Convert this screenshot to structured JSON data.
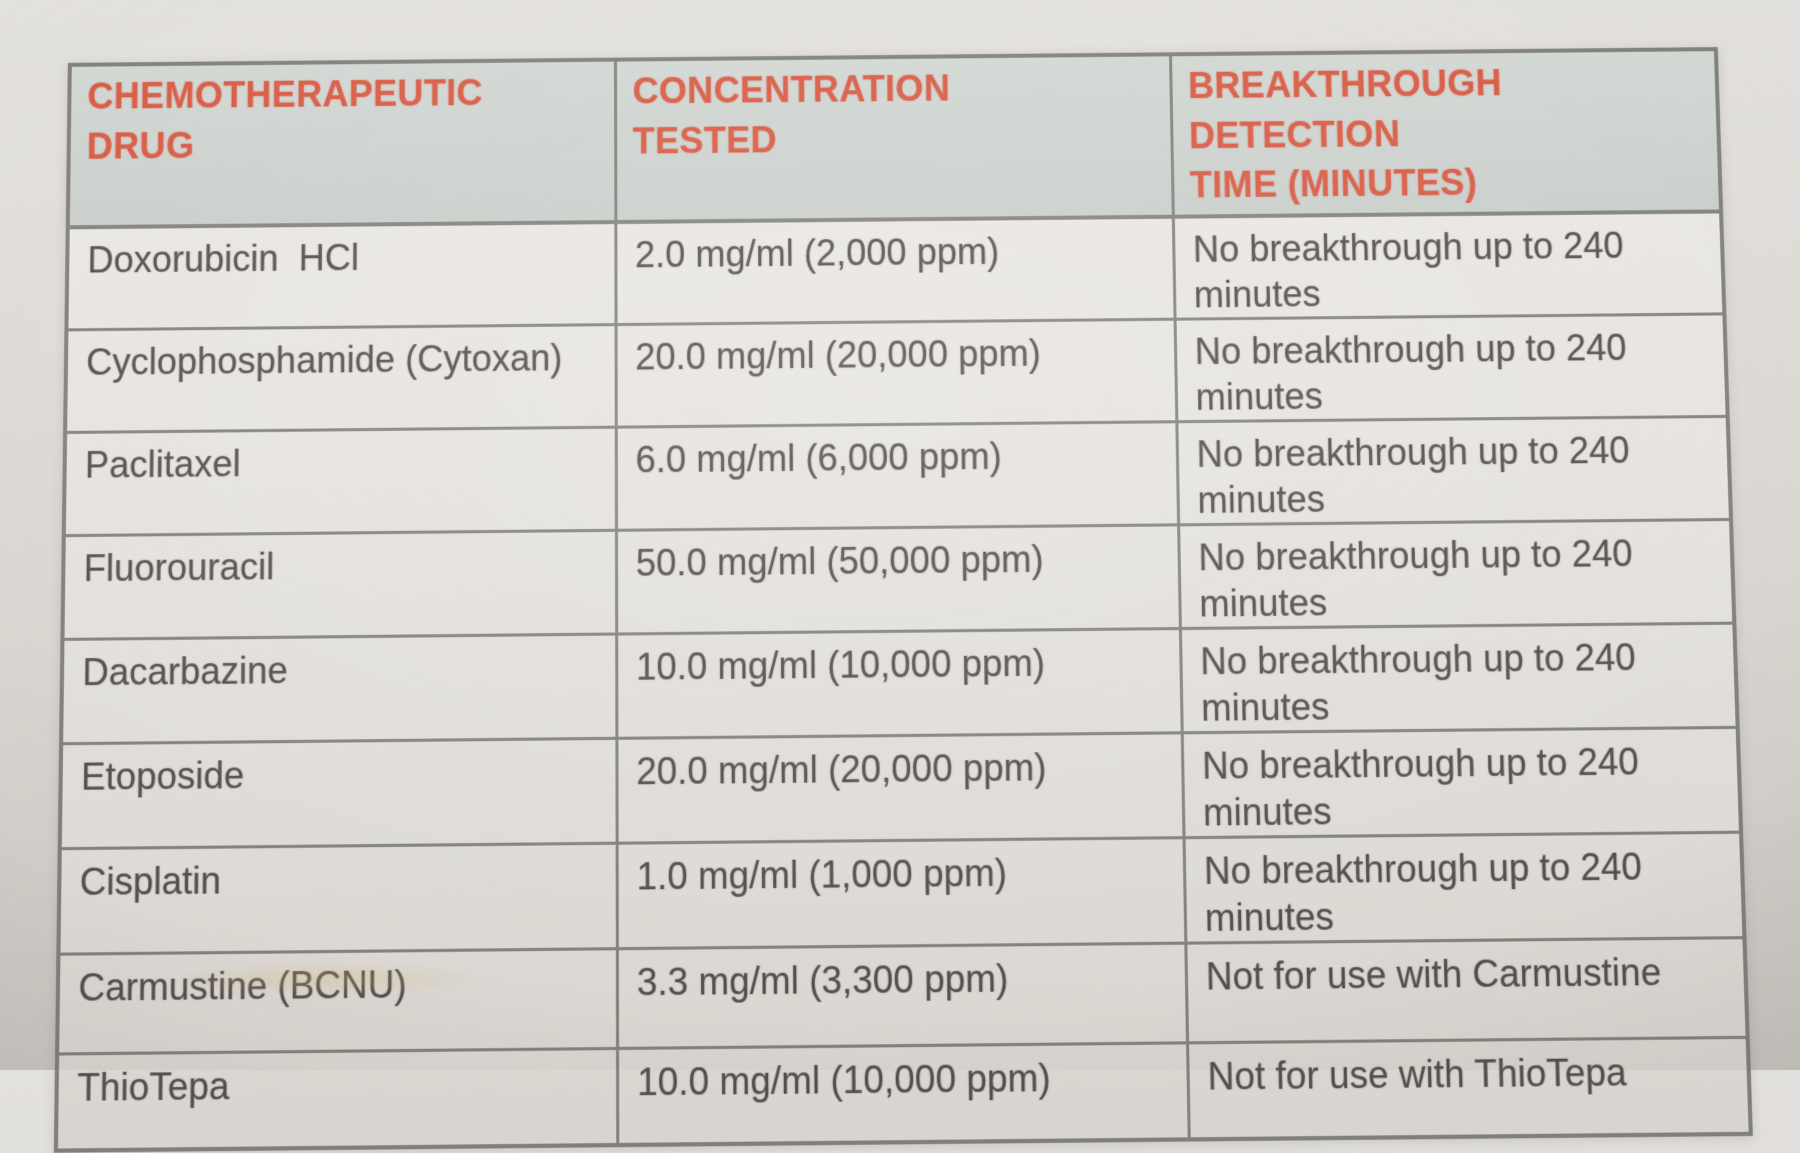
{
  "document": {
    "kind": "photographed-printed-table",
    "colors": {
      "header_text": "#d85a43",
      "header_background": "#cdd2ce",
      "body_text": "#53504c",
      "grid_line": "#83837d",
      "paper": "#e7e4df",
      "backdrop": "#d9d5d0"
    },
    "table": {
      "headers": [
        "CHEMOTHERAPEUTIC\nDRUG",
        "CONCENTRATION\nTESTED",
        "BREAKTHROUGH DETECTION\nTIME (MINUTES)"
      ],
      "rows": [
        {
          "drug": "Doxorubicin  HCl",
          "concentration": "2.0 mg/ml (2,000 ppm)",
          "breakthrough": "No breakthrough up to 240\nminutes"
        },
        {
          "drug": "Cyclophosphamide (Cytoxan)",
          "concentration": "20.0 mg/ml (20,000 ppm)",
          "breakthrough": "No breakthrough up to 240\nminutes"
        },
        {
          "drug": "Paclitaxel",
          "concentration": "6.0 mg/ml (6,000 ppm)",
          "breakthrough": "No breakthrough up to 240\nminutes"
        },
        {
          "drug": "Fluorouracil",
          "concentration": "50.0 mg/ml (50,000 ppm)",
          "breakthrough": "No breakthrough up to 240\nminutes"
        },
        {
          "drug": "Dacarbazine",
          "concentration": "10.0 mg/ml (10,000 ppm)",
          "breakthrough": "No breakthrough up to 240\nminutes"
        },
        {
          "drug": "Etoposide",
          "concentration": "20.0 mg/ml (20,000 ppm)",
          "breakthrough": "No breakthrough up to 240\nminutes"
        },
        {
          "drug": "Cisplatin",
          "concentration": "1.0 mg/ml (1,000 ppm)",
          "breakthrough": "No breakthrough up to 240\nminutes"
        },
        {
          "drug": "Carmustine (BCNU)",
          "concentration": "3.3 mg/ml (3,300 ppm)",
          "breakthrough": "Not for use with Carmustine"
        },
        {
          "drug": "ThioTepa",
          "concentration": "10.0 mg/ml (10,000 ppm)",
          "breakthrough": "Not for use with ThioTepa"
        }
      ]
    }
  }
}
